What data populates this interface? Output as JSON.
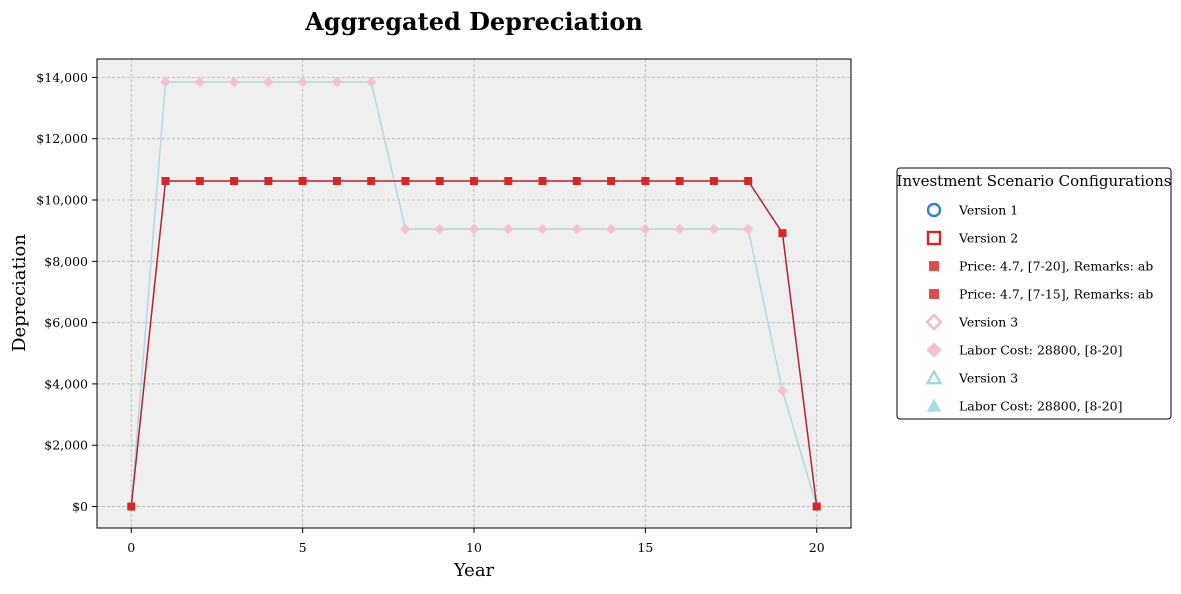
{
  "chart_data": {
    "type": "line",
    "title": "Aggregated Depreciation",
    "xlabel": "Year",
    "ylabel": "Depreciation",
    "xlim": [
      -1,
      21
    ],
    "ylim": [
      -700,
      14600
    ],
    "xticks": [
      0,
      5,
      10,
      15,
      20
    ],
    "xtick_labels": [
      "0",
      "5",
      "10",
      "15",
      "20"
    ],
    "yticks": [
      0,
      2000,
      4000,
      6000,
      8000,
      10000,
      12000,
      14000
    ],
    "ytick_labels": [
      "$0",
      "$2,000",
      "$4,000",
      "$6,000",
      "$8,000",
      "$10,000",
      "$12,000",
      "$14,000"
    ],
    "grid": true,
    "x": [
      0,
      1,
      2,
      3,
      4,
      5,
      6,
      7,
      8,
      9,
      10,
      11,
      12,
      13,
      14,
      15,
      16,
      17,
      18,
      19,
      20
    ],
    "series": [
      {
        "name": "Version 3",
        "color": "#add8e6",
        "marker_color": "#f5c0d5",
        "marker": "diamond",
        "values": [
          0,
          13850,
          13850,
          13850,
          13850,
          13850,
          13850,
          13850,
          9050,
          9050,
          9050,
          9050,
          9050,
          9050,
          9050,
          9050,
          9050,
          9050,
          9050,
          3780,
          0
        ]
      },
      {
        "name": "Version 2",
        "color": "#b22234",
        "marker_color": "#d62728",
        "marker": "square",
        "values": [
          0,
          10620,
          10620,
          10620,
          10620,
          10620,
          10620,
          10620,
          10620,
          10620,
          10620,
          10620,
          10620,
          10620,
          10620,
          10620,
          10620,
          10620,
          10620,
          8920,
          0
        ]
      }
    ],
    "legend": {
      "title": "Investment Scenario Configurations",
      "placement": "center-right",
      "entries": [
        {
          "label": "Version 1",
          "marker": "circle-open",
          "color": "#3a7fc1"
        },
        {
          "label": "Version 2",
          "marker": "square-open",
          "color": "#d62728"
        },
        {
          "label": "Price: 4.7, [7-20], Remarks: ab",
          "marker": "square",
          "color": "#d94f4f"
        },
        {
          "label": "Price: 4.7, [7-15], Remarks: ab",
          "marker": "square",
          "color": "#d94f4f"
        },
        {
          "label": "Version 3",
          "marker": "diamond-open",
          "color": "#f5b8cf"
        },
        {
          "label": "Labor Cost: 28800, [8-20]",
          "marker": "diamond",
          "color": "#f5c0d5"
        },
        {
          "label": "Version 3",
          "marker": "triangle-open",
          "color": "#a0d8e0"
        },
        {
          "label": "Labor Cost: 28800, [8-20]",
          "marker": "triangle",
          "color": "#a8dce6"
        }
      ]
    }
  }
}
